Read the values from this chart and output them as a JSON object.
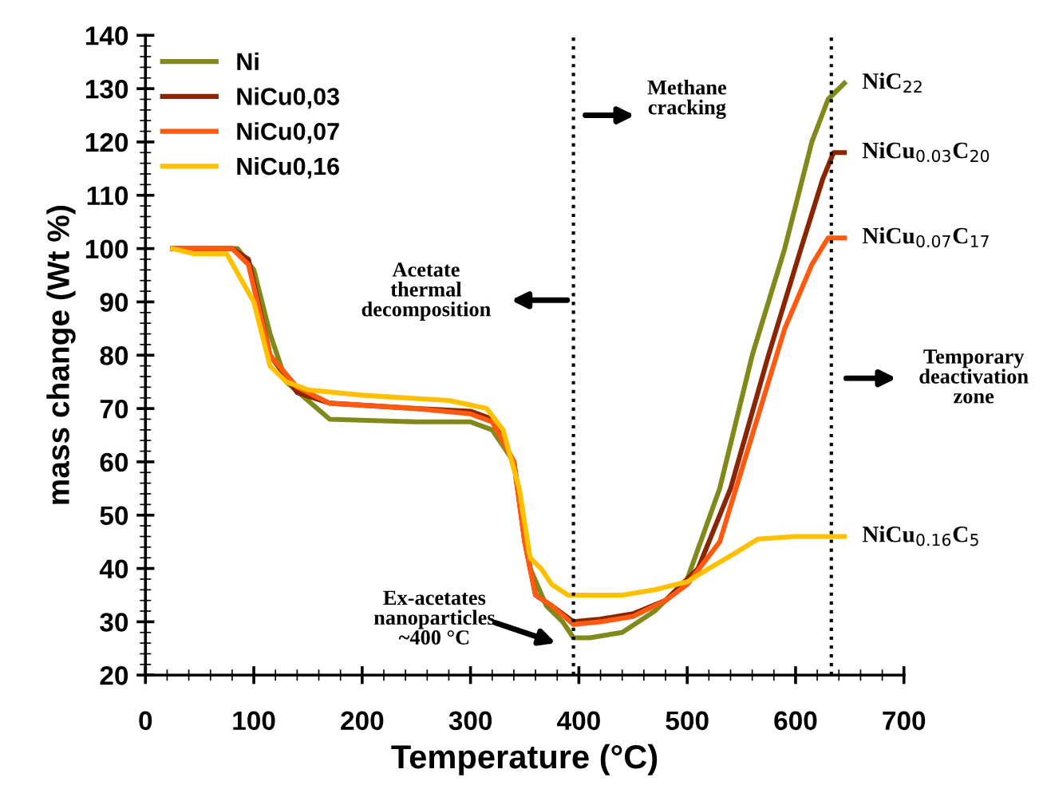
{
  "chart_data": {
    "type": "line",
    "xlabel": "Temperature (°C)",
    "ylabel": "mass change (Wt %)",
    "xlim": [
      0,
      700
    ],
    "xticks": [
      0,
      100,
      200,
      300,
      400,
      500,
      600,
      700
    ],
    "ylim": [
      20,
      140
    ],
    "yticks": [
      20,
      30,
      40,
      50,
      60,
      70,
      80,
      90,
      100,
      110,
      120,
      130,
      140
    ],
    "grid": false,
    "legend": "top left",
    "marker": "none",
    "line_style": "solid",
    "series": [
      {
        "name": "Ni",
        "color": "#7f8a1a",
        "x": [
          25,
          85,
          100,
          115,
          130,
          170,
          250,
          300,
          320,
          340,
          355,
          370,
          385,
          395,
          410,
          440,
          470,
          500,
          530,
          560,
          590,
          615,
          630,
          645
        ],
        "values": [
          100,
          100,
          96,
          84,
          75,
          68,
          67.5,
          67.5,
          66,
          60,
          40,
          33,
          30,
          27,
          27,
          28,
          32,
          38,
          55,
          80,
          100,
          120,
          128,
          131
        ]
      },
      {
        "name": "NiCu0,03",
        "color": "#8b2500",
        "x": [
          25,
          80,
          95,
          115,
          140,
          170,
          250,
          300,
          320,
          340,
          350,
          360,
          375,
          395,
          420,
          450,
          480,
          510,
          540,
          575,
          605,
          625,
          635,
          645
        ],
        "values": [
          100,
          100,
          98,
          80,
          73,
          71,
          70,
          69.5,
          68,
          60,
          45,
          35,
          33,
          30,
          30.5,
          31.5,
          34,
          40,
          55,
          80,
          100,
          113,
          118,
          118
        ]
      },
      {
        "name": "NiCu0,07",
        "color": "#ff5a10",
        "x": [
          25,
          80,
          95,
          115,
          140,
          170,
          250,
          300,
          320,
          340,
          350,
          360,
          375,
          395,
          420,
          450,
          480,
          500,
          530,
          560,
          590,
          615,
          630,
          645
        ],
        "values": [
          100,
          100,
          97,
          80,
          74,
          71,
          70,
          69,
          67.5,
          60,
          45,
          35,
          33,
          29.5,
          30,
          31,
          34,
          37,
          45,
          65,
          85,
          97,
          102,
          102
        ]
      },
      {
        "name": "NiCu0,16",
        "color": "#ffc000",
        "x": [
          25,
          45,
          75,
          100,
          115,
          130,
          150,
          200,
          280,
          315,
          330,
          345,
          355,
          365,
          375,
          390,
          440,
          470,
          500,
          520,
          545,
          565,
          600,
          645
        ],
        "values": [
          100,
          99,
          99,
          90,
          78,
          75,
          73.5,
          72.5,
          71.5,
          70,
          66,
          55,
          42,
          40,
          37,
          35,
          35,
          36,
          37.5,
          40,
          43,
          45.5,
          46,
          46
        ]
      }
    ],
    "ref_lines": [
      {
        "axis": "x",
        "value": 395,
        "line_style": "dotted",
        "color": "#000000"
      },
      {
        "axis": "x",
        "value": 633,
        "line_style": "dotted",
        "color": "#000000"
      }
    ],
    "annotations": [
      "NiC$_{22}$",
      "NiCu$_{0.03}$C$_{20}$",
      "NiCu$_{0.07}$C$_{17}$",
      "NiCu$_{0.16}$C$_{5}$",
      "Methane\ncracking",
      "Acetate\nthermal\ndecomposition",
      "Temporary\ndeactivation\nzone",
      "Ex-acetates\nnanoparticles\n~400 °C"
    ]
  }
}
